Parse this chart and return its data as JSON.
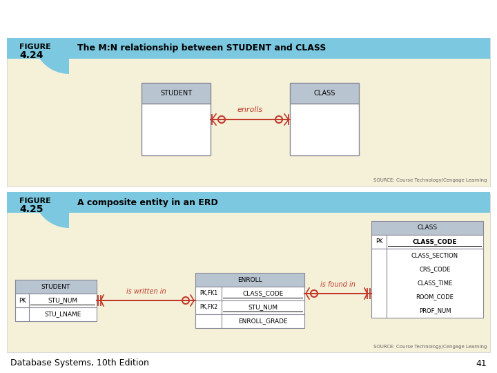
{
  "bg_color": "#ffffff",
  "slide_bg": "#f5f0d8",
  "header_bg": "#7bc8e0",
  "footer_text": "Database Systems, 10th Edition",
  "footer_page": "41",
  "table_header_color": "#b8c4d0",
  "table_border_color": "#888899",
  "line_color": "#c0392b",
  "source_text": "SOURCE: Course Technology/Cengage Learning",
  "fig1_header": "The M:N relationship between STUDENT and CLASS",
  "fig1_label": "FIGURE\n4.24",
  "fig2_header": "A composite entity in an ERD",
  "fig2_label": "FIGURE\n4.25",
  "enrolls_label": "enrolls",
  "is_written_in": "is written in",
  "is_found_in": "is found in",
  "student_fields": [
    "STU_NUM",
    "STU_LNAME"
  ],
  "enroll_fields": [
    "CLASS_CODE",
    "STU_NUM",
    "ENROLL_GRADE"
  ],
  "enroll_pk_fk": [
    "PK,FK1",
    "PK,FK2",
    ""
  ],
  "class_pk_field": "CLASS_CODE",
  "class_body_fields": [
    "CLASS_SECTION",
    "CRS_CODE",
    "CLASS_TIME",
    "ROOM_CODE",
    "PROF_NUM"
  ]
}
